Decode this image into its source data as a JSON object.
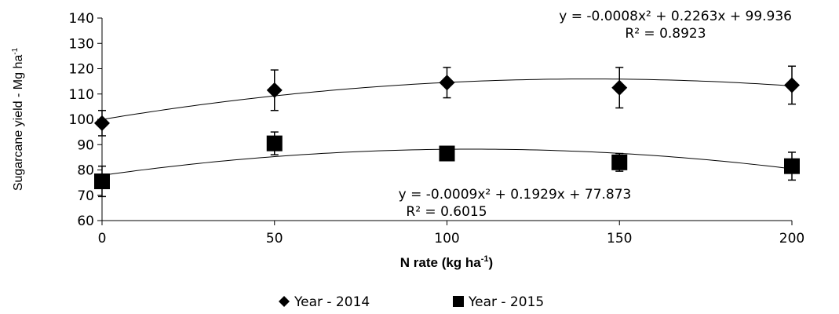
{
  "chart_data": {
    "type": "scatter",
    "xlabel_main": "N rate (kg ha",
    "xlabel_sup": "-1",
    "xlabel_end": ")",
    "ylabel_main": "Sugarcane yield - Mg ha",
    "ylabel_sup": "-1",
    "xlim": [
      0,
      200
    ],
    "ylim": [
      60,
      140
    ],
    "x_ticks": [
      0,
      50,
      100,
      150,
      200
    ],
    "y_ticks": [
      60,
      70,
      80,
      90,
      100,
      110,
      120,
      130,
      140
    ],
    "grid": false,
    "legend_position": "bottom",
    "series": [
      {
        "name": "Year - 2014",
        "marker": "diamond",
        "color": "#000000",
        "x": [
          0,
          50,
          100,
          150,
          200
        ],
        "y": [
          98.5,
          111.5,
          114.5,
          112.5,
          113.5
        ],
        "err": [
          5,
          8,
          6,
          8,
          7.5
        ],
        "trend": {
          "a": -0.0008,
          "b": 0.2263,
          "c": 99.936
        },
        "equation_text": "y = -0.0008x² + 0.2263x + 99.936",
        "r2_text": "R² = 0.8923"
      },
      {
        "name": "Year - 2015",
        "marker": "square",
        "color": "#000000",
        "x": [
          0,
          50,
          100,
          150,
          200
        ],
        "y": [
          75.5,
          90.5,
          86.5,
          83,
          81.5
        ],
        "err": [
          6,
          4.5,
          2.5,
          3.5,
          5.5
        ],
        "trend": {
          "a": -0.0009,
          "b": 0.1929,
          "c": 77.873
        },
        "equation_text": "y = -0.0009x² + 0.1929x + 77.873",
        "r2_text": "R² = 0.6015"
      }
    ]
  }
}
